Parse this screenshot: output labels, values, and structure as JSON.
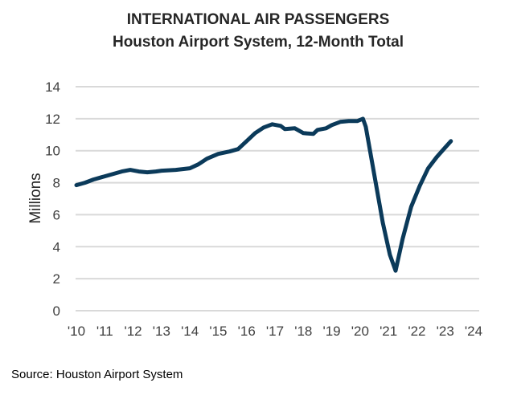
{
  "chart_data": {
    "type": "line",
    "title": "INTERNATIONAL AIR PASSENGERS",
    "subtitle": "Houston Airport System, 12-Month Total",
    "xlabel": "",
    "ylabel": "Millions",
    "ylim": [
      0,
      14
    ],
    "xlim": [
      2010,
      2024
    ],
    "yticks": [
      "0",
      "2",
      "4",
      "6",
      "8",
      "10",
      "12",
      "14"
    ],
    "xticks": [
      "'10",
      "'11",
      "'12",
      "'13",
      "'14",
      "'15",
      "'16",
      "'17",
      "'18",
      "'19",
      "'20",
      "'21",
      "'22",
      "'23",
      "'24"
    ],
    "grid": true,
    "color": "#0b3a5a",
    "series": [
      {
        "name": "International Air Passengers",
        "x": [
          2010.0,
          2010.3,
          2010.6,
          2011.0,
          2011.3,
          2011.6,
          2011.9,
          2012.2,
          2012.5,
          2012.8,
          2013.0,
          2013.5,
          2014.0,
          2014.3,
          2014.6,
          2015.0,
          2015.4,
          2015.7,
          2016.0,
          2016.3,
          2016.6,
          2016.9,
          2017.2,
          2017.35,
          2017.7,
          2018.0,
          2018.35,
          2018.5,
          2018.8,
          2019.0,
          2019.3,
          2019.6,
          2019.9,
          2020.1,
          2020.2,
          2020.5,
          2020.8,
          2021.05,
          2021.25,
          2021.5,
          2021.8,
          2022.1,
          2022.4,
          2022.7,
          2023.0,
          2023.2
        ],
        "values": [
          7.85,
          8.0,
          8.2,
          8.4,
          8.55,
          8.7,
          8.8,
          8.7,
          8.65,
          8.7,
          8.75,
          8.8,
          8.9,
          9.15,
          9.5,
          9.8,
          9.95,
          10.1,
          10.6,
          11.1,
          11.45,
          11.65,
          11.55,
          11.35,
          11.4,
          11.1,
          11.05,
          11.3,
          11.4,
          11.6,
          11.8,
          11.85,
          11.85,
          12.0,
          11.5,
          8.5,
          5.5,
          3.5,
          2.5,
          4.5,
          6.5,
          7.8,
          8.9,
          9.6,
          10.2,
          10.6
        ]
      }
    ]
  },
  "source": "Source: Houston Airport System"
}
